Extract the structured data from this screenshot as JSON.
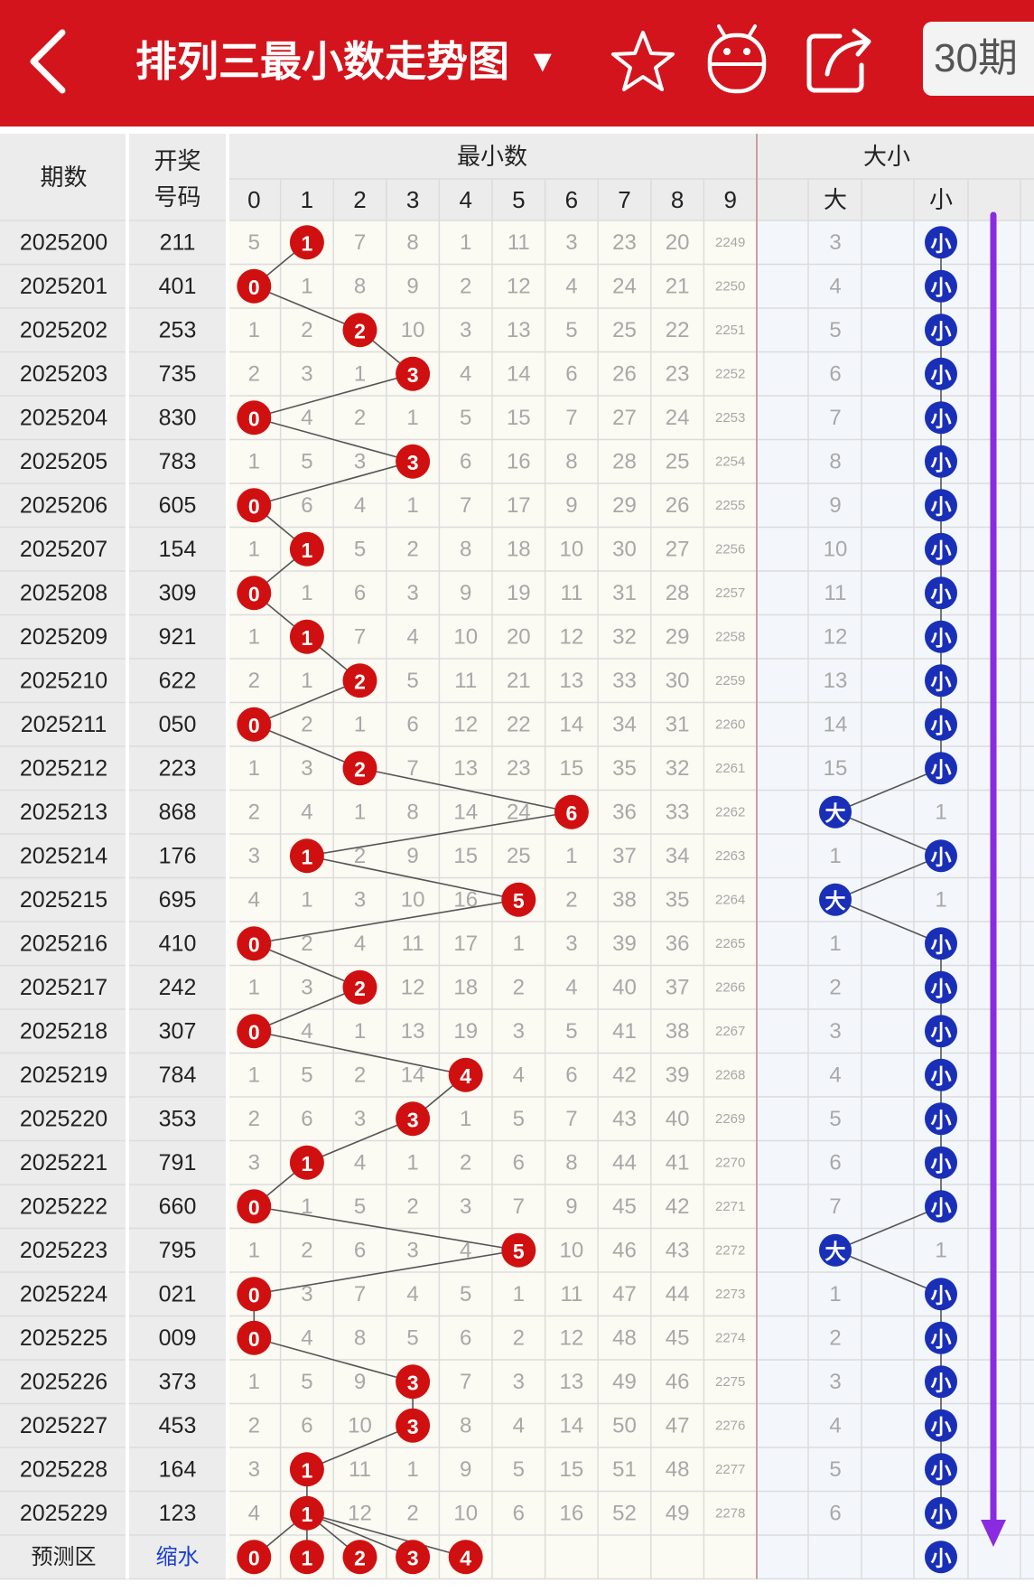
{
  "header": {
    "title": "排列三最小数走势图",
    "title_arrow": "▼",
    "period_label": "30期",
    "back_icon": "chevron-left-icon",
    "fav_icon": "star-outline-icon",
    "bot_icon": "robot-icon",
    "share_icon": "share-icon"
  },
  "table": {
    "col_period": "期数",
    "col_draw": "开奖号码",
    "group_min": "最小数",
    "group_size": "大小",
    "size_big": "大",
    "size_small": "小",
    "digits": [
      "0",
      "1",
      "2",
      "3",
      "4",
      "5",
      "6",
      "7",
      "8",
      "9"
    ],
    "footer_label": "预测区",
    "footer_link": "缩水",
    "footer_size": "小",
    "footer_predictions": [
      "0",
      "1",
      "2",
      "3",
      "4"
    ]
  },
  "rows": [
    {
      "period": "2025200",
      "draw": "211",
      "min": 1,
      "size": "small",
      "cells": [
        "5",
        "1",
        "7",
        "8",
        "1",
        "11",
        "3",
        "23",
        "20",
        "2249"
      ],
      "big_miss": "3"
    },
    {
      "period": "2025201",
      "draw": "401",
      "min": 0,
      "size": "small",
      "cells": [
        "0",
        "1",
        "8",
        "9",
        "2",
        "12",
        "4",
        "24",
        "21",
        "2250"
      ],
      "big_miss": "4"
    },
    {
      "period": "2025202",
      "draw": "253",
      "min": 2,
      "size": "small",
      "cells": [
        "1",
        "2",
        "2",
        "10",
        "3",
        "13",
        "5",
        "25",
        "22",
        "2251"
      ],
      "big_miss": "5"
    },
    {
      "period": "2025203",
      "draw": "735",
      "min": 3,
      "size": "small",
      "cells": [
        "2",
        "3",
        "1",
        "3",
        "4",
        "14",
        "6",
        "26",
        "23",
        "2252"
      ],
      "big_miss": "6"
    },
    {
      "period": "2025204",
      "draw": "830",
      "min": 0,
      "size": "small",
      "cells": [
        "0",
        "4",
        "2",
        "1",
        "5",
        "15",
        "7",
        "27",
        "24",
        "2253"
      ],
      "big_miss": "7"
    },
    {
      "period": "2025205",
      "draw": "783",
      "min": 3,
      "size": "small",
      "cells": [
        "1",
        "5",
        "3",
        "3",
        "6",
        "16",
        "8",
        "28",
        "25",
        "2254"
      ],
      "big_miss": "8"
    },
    {
      "period": "2025206",
      "draw": "605",
      "min": 0,
      "size": "small",
      "cells": [
        "0",
        "6",
        "4",
        "1",
        "7",
        "17",
        "9",
        "29",
        "26",
        "2255"
      ],
      "big_miss": "9"
    },
    {
      "period": "2025207",
      "draw": "154",
      "min": 1,
      "size": "small",
      "cells": [
        "1",
        "1",
        "5",
        "2",
        "8",
        "18",
        "10",
        "30",
        "27",
        "2256"
      ],
      "big_miss": "10"
    },
    {
      "period": "2025208",
      "draw": "309",
      "min": 0,
      "size": "small",
      "cells": [
        "0",
        "1",
        "6",
        "3",
        "9",
        "19",
        "11",
        "31",
        "28",
        "2257"
      ],
      "big_miss": "11"
    },
    {
      "period": "2025209",
      "draw": "921",
      "min": 1,
      "size": "small",
      "cells": [
        "1",
        "1",
        "7",
        "4",
        "10",
        "20",
        "12",
        "32",
        "29",
        "2258"
      ],
      "big_miss": "12"
    },
    {
      "period": "2025210",
      "draw": "622",
      "min": 2,
      "size": "small",
      "cells": [
        "2",
        "1",
        "2",
        "5",
        "11",
        "21",
        "13",
        "33",
        "30",
        "2259"
      ],
      "big_miss": "13"
    },
    {
      "period": "2025211",
      "draw": "050",
      "min": 0,
      "size": "small",
      "cells": [
        "0",
        "2",
        "1",
        "6",
        "12",
        "22",
        "14",
        "34",
        "31",
        "2260"
      ],
      "big_miss": "14"
    },
    {
      "period": "2025212",
      "draw": "223",
      "min": 2,
      "size": "small",
      "cells": [
        "1",
        "3",
        "2",
        "7",
        "13",
        "23",
        "15",
        "35",
        "32",
        "2261"
      ],
      "big_miss": "15"
    },
    {
      "period": "2025213",
      "draw": "868",
      "min": 6,
      "size": "big",
      "cells": [
        "2",
        "4",
        "1",
        "8",
        "14",
        "24",
        "6",
        "36",
        "33",
        "2262"
      ],
      "small_miss": "1"
    },
    {
      "period": "2025214",
      "draw": "176",
      "min": 1,
      "size": "small",
      "cells": [
        "3",
        "1",
        "2",
        "9",
        "15",
        "25",
        "1",
        "37",
        "34",
        "2263"
      ],
      "big_miss": "1"
    },
    {
      "period": "2025215",
      "draw": "695",
      "min": 5,
      "size": "big",
      "cells": [
        "4",
        "1",
        "3",
        "10",
        "16",
        "5",
        "2",
        "38",
        "35",
        "2264"
      ],
      "small_miss": "1"
    },
    {
      "period": "2025216",
      "draw": "410",
      "min": 0,
      "size": "small",
      "cells": [
        "0",
        "2",
        "4",
        "11",
        "17",
        "1",
        "3",
        "39",
        "36",
        "2265"
      ],
      "big_miss": "1"
    },
    {
      "period": "2025217",
      "draw": "242",
      "min": 2,
      "size": "small",
      "cells": [
        "1",
        "3",
        "2",
        "12",
        "18",
        "2",
        "4",
        "40",
        "37",
        "2266"
      ],
      "big_miss": "2"
    },
    {
      "period": "2025218",
      "draw": "307",
      "min": 0,
      "size": "small",
      "cells": [
        "0",
        "4",
        "1",
        "13",
        "19",
        "3",
        "5",
        "41",
        "38",
        "2267"
      ],
      "big_miss": "3"
    },
    {
      "period": "2025219",
      "draw": "784",
      "min": 4,
      "size": "small",
      "cells": [
        "1",
        "5",
        "2",
        "14",
        "4",
        "4",
        "6",
        "42",
        "39",
        "2268"
      ],
      "big_miss": "4"
    },
    {
      "period": "2025220",
      "draw": "353",
      "min": 3,
      "size": "small",
      "cells": [
        "2",
        "6",
        "3",
        "3",
        "1",
        "5",
        "7",
        "43",
        "40",
        "2269"
      ],
      "big_miss": "5"
    },
    {
      "period": "2025221",
      "draw": "791",
      "min": 1,
      "size": "small",
      "cells": [
        "3",
        "1",
        "4",
        "1",
        "2",
        "6",
        "8",
        "44",
        "41",
        "2270"
      ],
      "big_miss": "6"
    },
    {
      "period": "2025222",
      "draw": "660",
      "min": 0,
      "size": "small",
      "cells": [
        "0",
        "1",
        "5",
        "2",
        "3",
        "7",
        "9",
        "45",
        "42",
        "2271"
      ],
      "big_miss": "7"
    },
    {
      "period": "2025223",
      "draw": "795",
      "min": 5,
      "size": "big",
      "cells": [
        "1",
        "2",
        "6",
        "3",
        "4",
        "5",
        "10",
        "46",
        "43",
        "2272"
      ],
      "small_miss": "1"
    },
    {
      "period": "2025224",
      "draw": "021",
      "min": 0,
      "size": "small",
      "cells": [
        "0",
        "3",
        "7",
        "4",
        "5",
        "1",
        "11",
        "47",
        "44",
        "2273"
      ],
      "big_miss": "1"
    },
    {
      "period": "2025225",
      "draw": "009",
      "min": 0,
      "size": "small",
      "cells": [
        "0",
        "4",
        "8",
        "5",
        "6",
        "2",
        "12",
        "48",
        "45",
        "2274"
      ],
      "big_miss": "2"
    },
    {
      "period": "2025226",
      "draw": "373",
      "min": 3,
      "size": "small",
      "cells": [
        "1",
        "5",
        "9",
        "3",
        "7",
        "3",
        "13",
        "49",
        "46",
        "2275"
      ],
      "big_miss": "3"
    },
    {
      "period": "2025227",
      "draw": "453",
      "min": 3,
      "size": "small",
      "cells": [
        "2",
        "6",
        "10",
        "3",
        "8",
        "4",
        "14",
        "50",
        "47",
        "2276"
      ],
      "big_miss": "4"
    },
    {
      "period": "2025228",
      "draw": "164",
      "min": 1,
      "size": "small",
      "cells": [
        "3",
        "1",
        "11",
        "1",
        "9",
        "5",
        "15",
        "51",
        "48",
        "2277"
      ],
      "big_miss": "5"
    },
    {
      "period": "2025229",
      "draw": "123",
      "min": 1,
      "size": "small",
      "cells": [
        "4",
        "1",
        "12",
        "2",
        "10",
        "6",
        "16",
        "52",
        "49",
        "2278"
      ],
      "big_miss": "6"
    }
  ],
  "colors": {
    "header_red": "#d3141c",
    "hit_red": "#d01010",
    "size_blue": "#1a2fb8",
    "miss_text": "#a8a8a8",
    "grid_line": "#dcdcdc",
    "scroll_arrow": "#8a2be2"
  }
}
